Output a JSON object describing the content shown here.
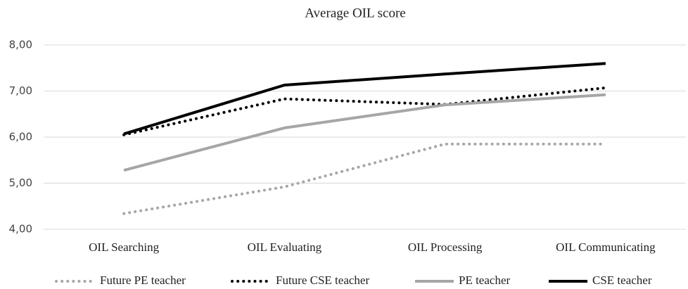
{
  "chart_data": {
    "type": "line",
    "title": "Average OIL score",
    "categories": [
      "OIL Searching",
      "OIL Evaluating",
      "OIL Processing",
      "OIL Communicating"
    ],
    "series": [
      {
        "name": "Future PE teacher",
        "color": "#a6a6a6",
        "style": "dotted",
        "values": [
          4.34,
          4.92,
          5.85,
          5.85
        ]
      },
      {
        "name": "Future CSE teacher",
        "color": "#000000",
        "style": "dotted",
        "values": [
          6.05,
          6.83,
          6.71,
          7.07
        ]
      },
      {
        "name": "PE teacher",
        "color": "#a6a6a6",
        "style": "solid",
        "values": [
          5.28,
          6.2,
          6.7,
          6.92
        ]
      },
      {
        "name": "CSE teacher",
        "color": "#000000",
        "style": "solid",
        "values": [
          6.07,
          7.13,
          7.37,
          7.6
        ]
      }
    ],
    "ylim": [
      4,
      8
    ],
    "yticks": [
      {
        "value": 4,
        "label": "4,00"
      },
      {
        "value": 5,
        "label": "5,00"
      },
      {
        "value": 6,
        "label": "6,00"
      },
      {
        "value": 7,
        "label": "7,00"
      },
      {
        "value": 8,
        "label": "8,00"
      }
    ],
    "grid": true,
    "legend": "bottom"
  }
}
